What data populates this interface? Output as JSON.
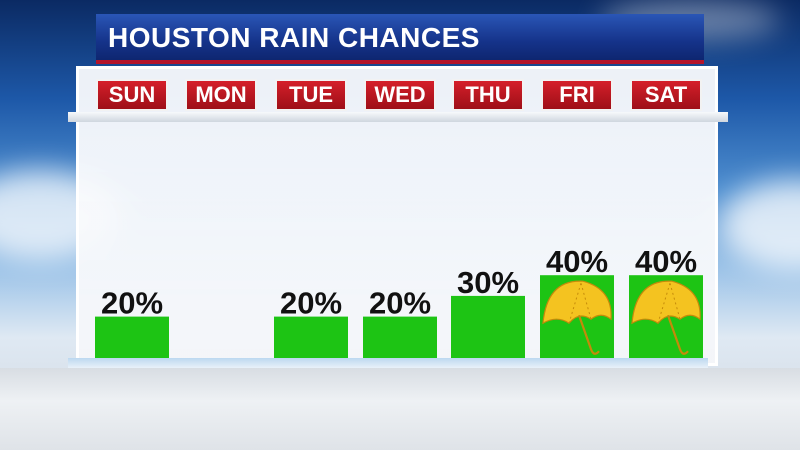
{
  "title": "HOUSTON RAIN CHANCES",
  "colors": {
    "title_bar": "#15338a",
    "day_tab": "#c1141f",
    "bar": "#1dc414",
    "umbrella": "#f4c320"
  },
  "chart_data": {
    "type": "bar",
    "title": "HOUSTON RAIN CHANCES",
    "categories": [
      "SUN",
      "MON",
      "TUE",
      "WED",
      "THU",
      "FRI",
      "SAT"
    ],
    "values": [
      20,
      0,
      20,
      20,
      30,
      40,
      40
    ],
    "data_labels": [
      "20%",
      "",
      "20%",
      "20%",
      "30%",
      "40%",
      "40%"
    ],
    "icons": [
      "",
      "",
      "",
      "",
      "",
      "umbrella-icon",
      "umbrella-icon"
    ],
    "unit": "%",
    "ylim": [
      0,
      100
    ],
    "grid": false,
    "legend": "none"
  }
}
